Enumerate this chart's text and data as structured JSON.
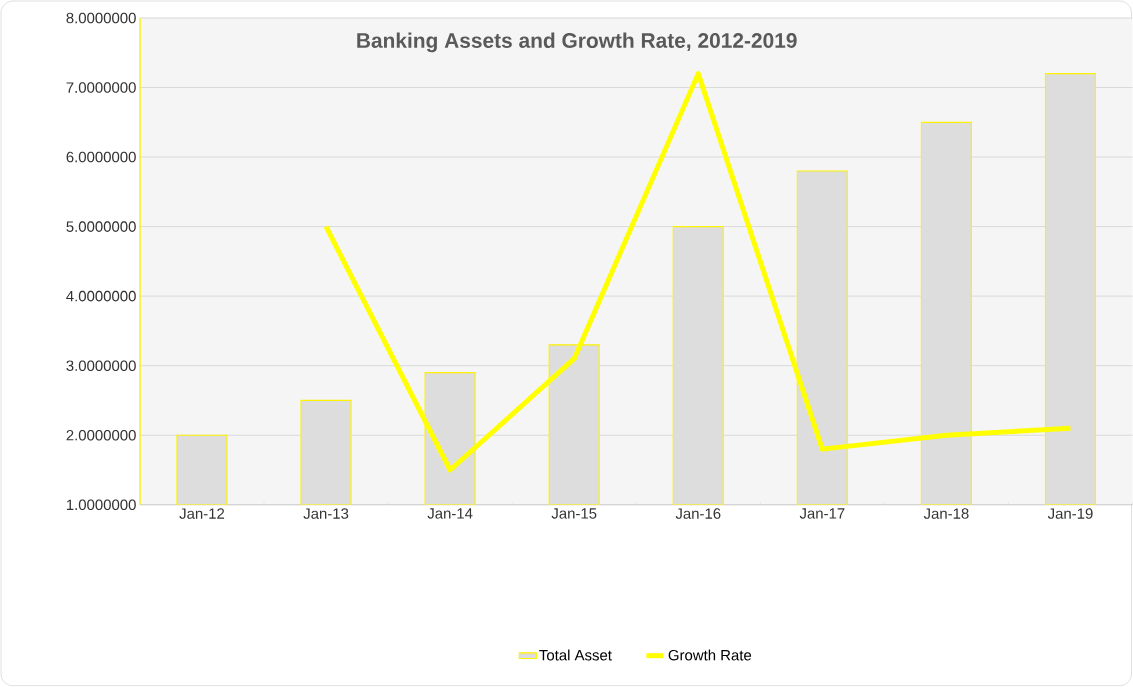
{
  "chart_data": {
    "type": "bar",
    "title": "Banking Assets and Growth Rate, 2012-2019",
    "categories": [
      "Jan-12",
      "Jan-13",
      "Jan-14",
      "Jan-15",
      "Jan-16",
      "Jan-17",
      "Jan-18",
      "Jan-19"
    ],
    "series": [
      {
        "name": "Total Asset",
        "color": "#dddddd",
        "values": [
          2.0,
          2.5,
          2.9,
          3.3,
          5.0,
          5.8,
          6.5,
          7.2
        ]
      },
      {
        "name": "Growth Rate",
        "type": "line",
        "color": "#ffff00",
        "values": [
          null,
          5.0,
          1.5,
          3.1,
          7.2,
          1.8,
          2.0,
          2.1
        ]
      }
    ],
    "ylim": [
      1,
      8
    ],
    "yticks": [
      {
        "value": 1,
        "label": "1.0000000"
      },
      {
        "value": 2,
        "label": "2.0000000"
      },
      {
        "value": 3,
        "label": "3.0000000"
      },
      {
        "value": 4,
        "label": "4.0000000"
      },
      {
        "value": 5,
        "label": "5.0000000"
      },
      {
        "value": 6,
        "label": "6.0000000"
      },
      {
        "value": 7,
        "label": "7.0000000"
      },
      {
        "value": 8,
        "label": "8.0000000"
      }
    ],
    "grid": "y",
    "legend": "bottom",
    "marker": "none",
    "line_style": "solid"
  }
}
